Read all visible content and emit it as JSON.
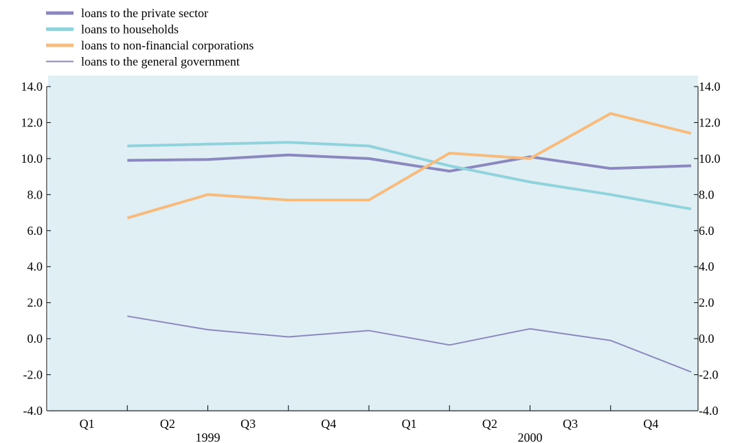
{
  "chart_data": {
    "type": "line",
    "categories": [
      "Q1",
      "Q2",
      "Q3",
      "Q4",
      "Q1",
      "Q2",
      "Q3",
      "Q4"
    ],
    "years": [
      "1999",
      "2000"
    ],
    "ylim": [
      -4.0,
      14.0
    ],
    "yticks": [
      "-4.0",
      "-2.0",
      "0.0",
      "2.0",
      "4.0",
      "6.0",
      "8.0",
      "10.0",
      "12.0",
      "14.0"
    ],
    "x": [
      1,
      2,
      3,
      4,
      5,
      6,
      7,
      8,
      9
    ],
    "series": [
      {
        "name": "loans to the private sector",
        "color": "#8b88bf",
        "style": "thick",
        "values": [
          9.9,
          9.95,
          10.2,
          10.0,
          9.3,
          10.1,
          9.45,
          9.6,
          null
        ]
      },
      {
        "name": "loans to households",
        "color": "#91d3dc",
        "style": "thick",
        "values": [
          10.7,
          10.8,
          10.9,
          10.7,
          9.6,
          8.7,
          8.0,
          7.2,
          null
        ]
      },
      {
        "name": "loans to non-financial corporations",
        "color": "#f6bb7d",
        "style": "thick",
        "values": [
          6.7,
          8.0,
          7.7,
          7.7,
          10.3,
          10.0,
          12.5,
          11.4,
          null
        ]
      },
      {
        "name": "loans to the general government",
        "color": "#8b88bf",
        "style": "thin",
        "values": [
          1.25,
          0.5,
          0.1,
          0.45,
          -0.35,
          0.55,
          -0.1,
          -1.85,
          null
        ]
      }
    ],
    "grid": false,
    "legend_position": "top-left",
    "plot_background": "#e0eff3"
  }
}
